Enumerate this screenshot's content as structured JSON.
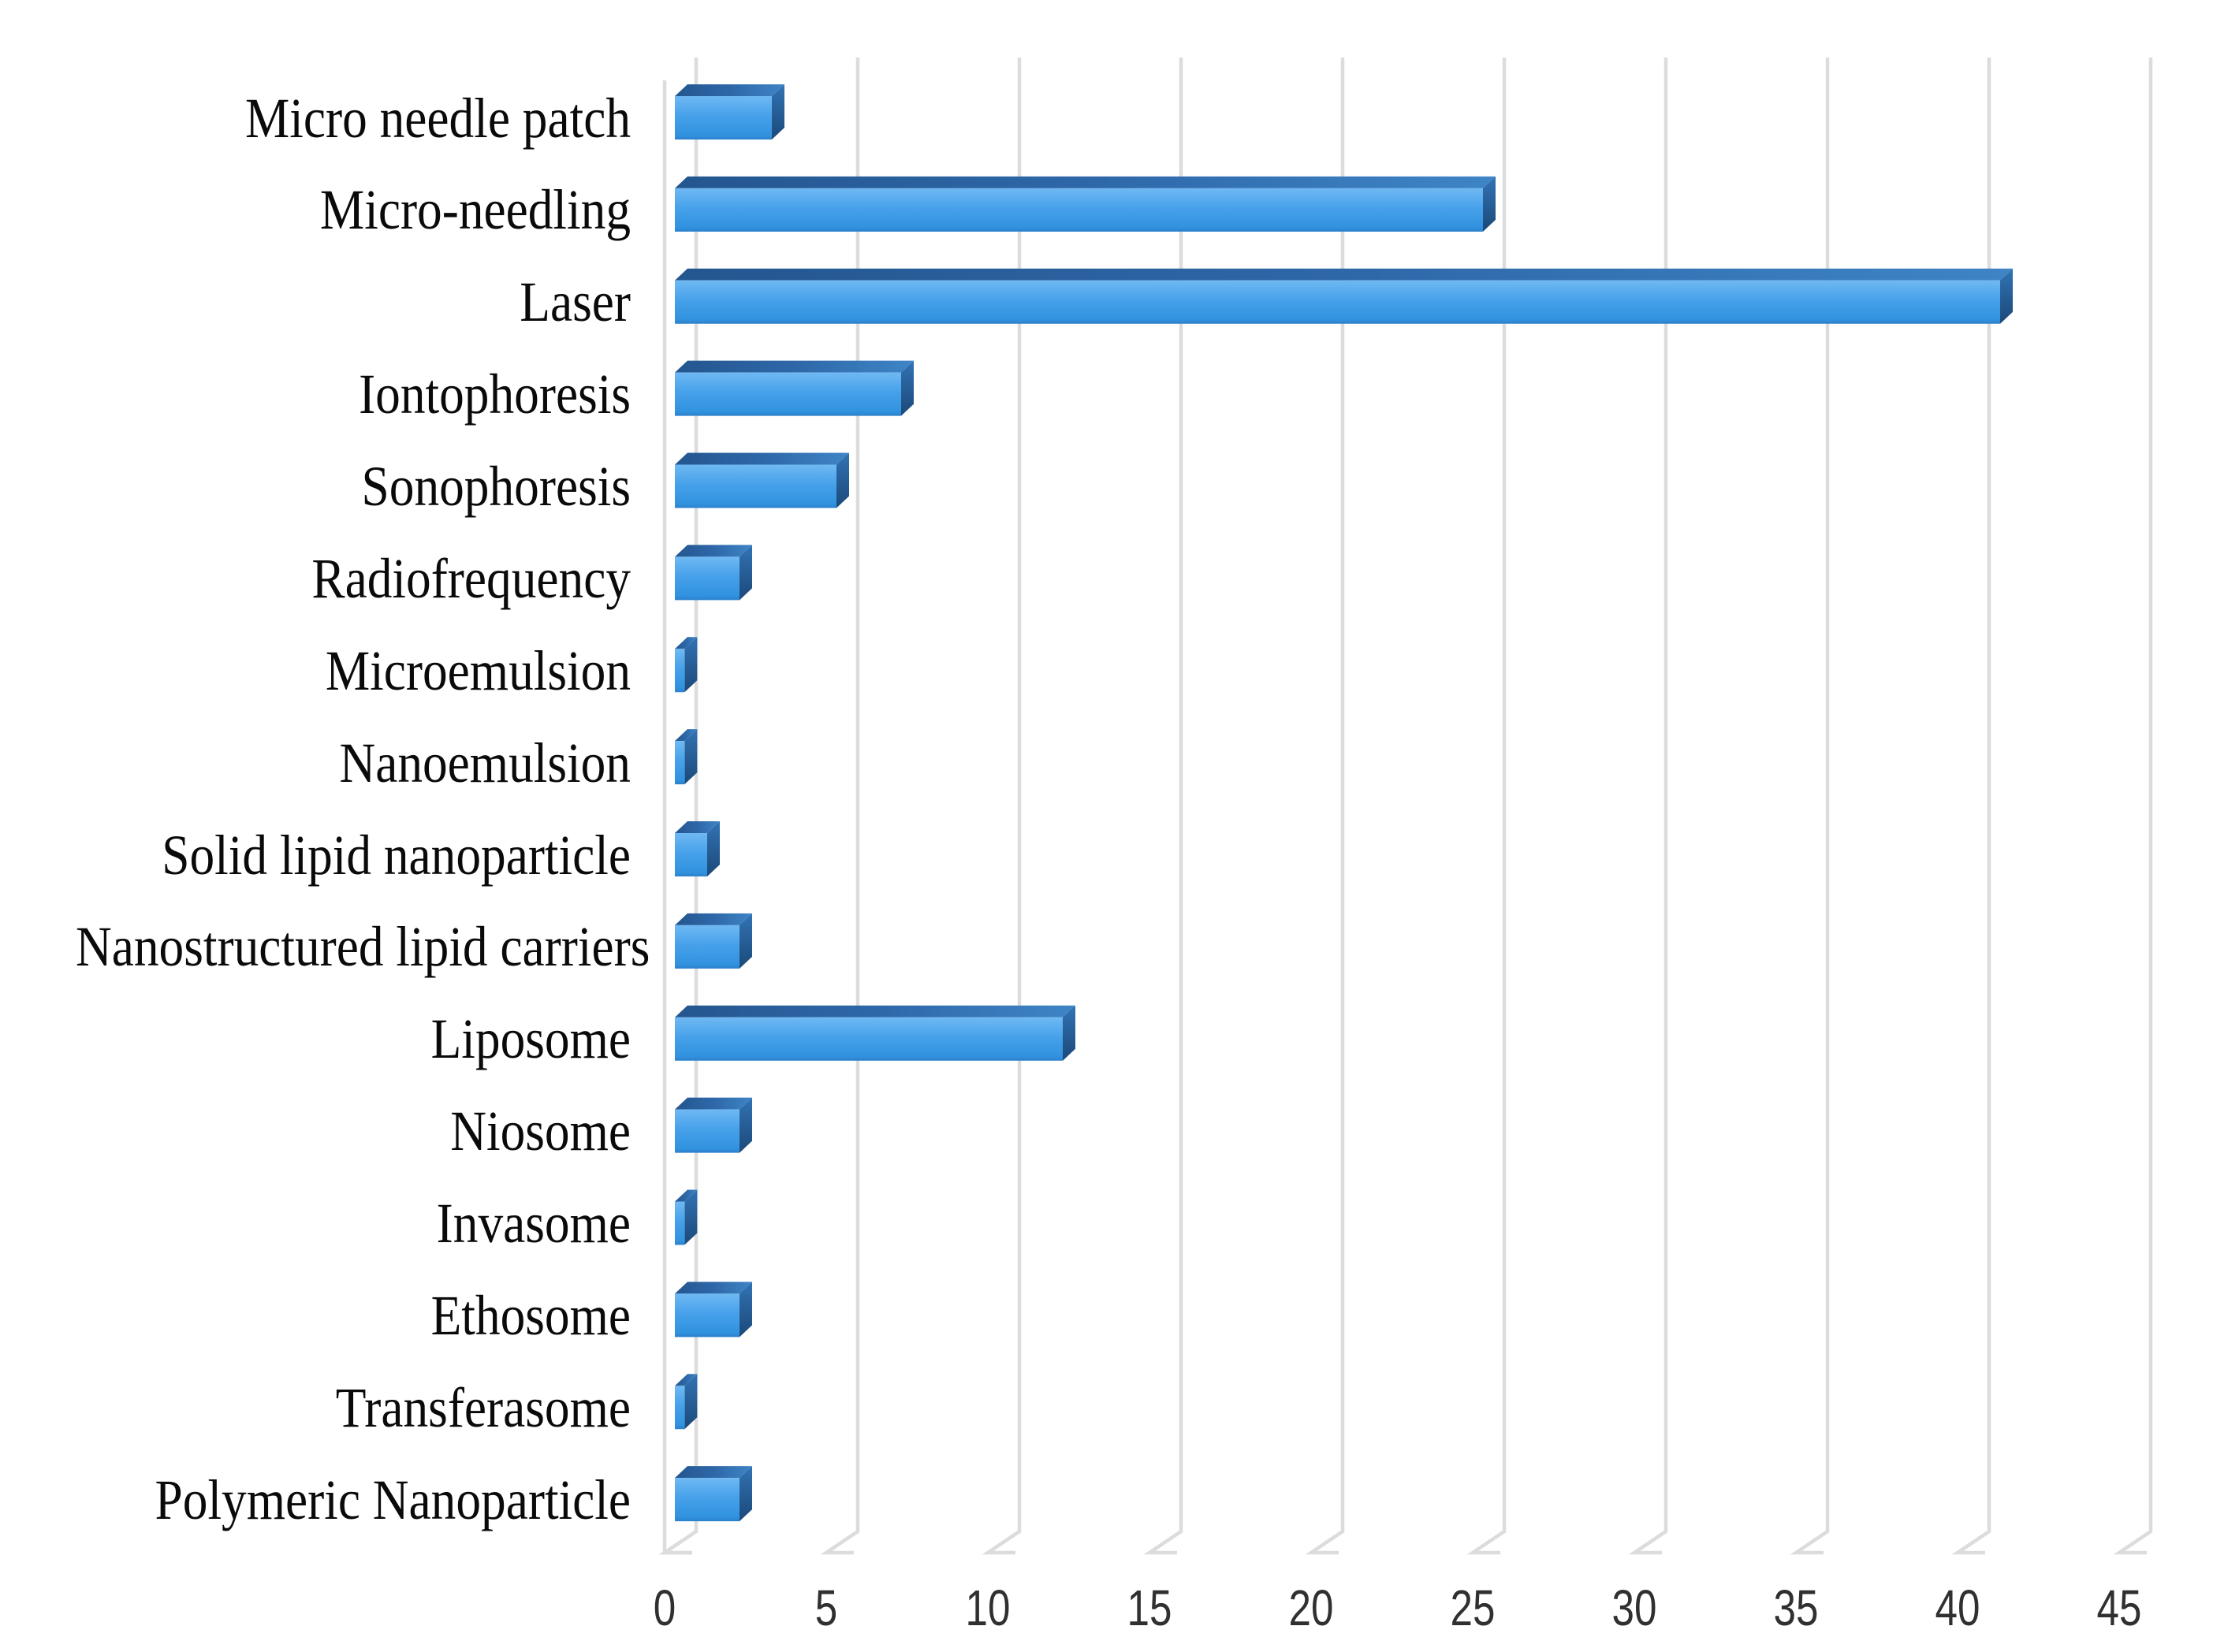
{
  "figure": {
    "background_color": "#FFFFFF"
  },
  "chart_data": {
    "type": "bar",
    "orientation": "horizontal",
    "style": "3d-beveled-bars",
    "title": "",
    "xlabel": "",
    "ylabel": "",
    "grid": true,
    "legend": false,
    "xlim": [
      0,
      45
    ],
    "x_ticks": [
      0,
      5,
      10,
      15,
      20,
      25,
      30,
      35,
      40,
      45
    ],
    "categories": [
      "Micro needle patch",
      "Micro-needling",
      "Laser",
      "Iontophoresis",
      "Sonophoresis",
      "Radiofrequency",
      "Microemulsion",
      "Nanoemulsion",
      "Solid lipid nanoparticle",
      "Nanostructured lipid carriers",
      "Liposome",
      "Niosome",
      "Invasome",
      "Ethosome",
      "Transferasome",
      "Polymeric Nanoparticle"
    ],
    "values": [
      3,
      25,
      41,
      7,
      5,
      2,
      0.3,
      0.3,
      1,
      2,
      12,
      2,
      0.3,
      2,
      0.3,
      2
    ],
    "colors": {
      "bar_front_top": "#6FB9F3",
      "bar_front_mid": "#47A1EA",
      "bar_front_bottom": "#2C80CB",
      "bar_top_left": "#24568F",
      "bar_top_right": "#3E85C6",
      "bar_side_top": "#3273B5",
      "bar_side_bottom": "#1B4979",
      "gridline": "#DCDCDC",
      "tick_text": "#303030",
      "label_text": "#0A0A0A"
    }
  }
}
